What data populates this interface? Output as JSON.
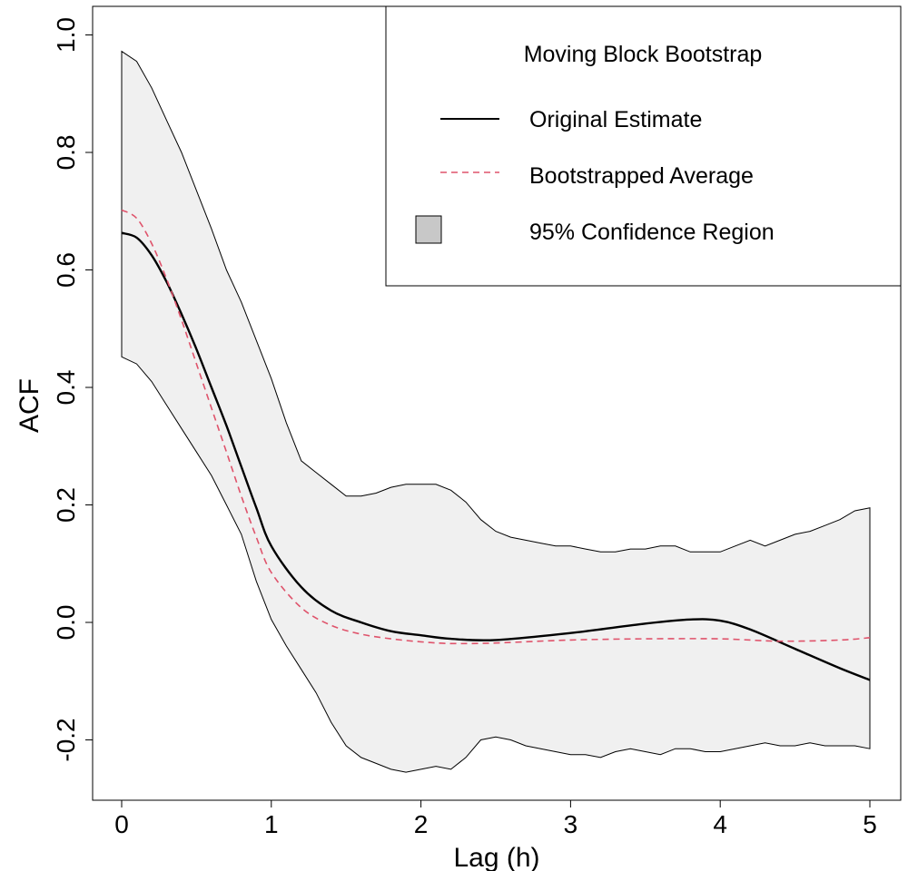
{
  "chart_data": {
    "type": "line",
    "title": "",
    "xlabel": "Lag (h)",
    "ylabel": "ACF",
    "xlim": [
      -0.18,
      5.05
    ],
    "ylim": [
      -0.3,
      1.05
    ],
    "xticks": [
      0,
      1,
      2,
      3,
      4,
      5
    ],
    "yticks": [
      -0.2,
      0.0,
      0.2,
      0.4,
      0.6,
      0.8,
      1.0
    ],
    "xtick_labels": [
      "0",
      "1",
      "2",
      "3",
      "4",
      "5"
    ],
    "ytick_labels": [
      "-0.2",
      "0.0",
      "0.2",
      "0.4",
      "0.6",
      "0.8",
      "1.0"
    ],
    "grid": false,
    "legend": {
      "position": "top-right",
      "title": "Moving Block Bootstrap",
      "entries": [
        {
          "label": "Original Estimate",
          "symbol": "solid-line",
          "color": "#000000"
        },
        {
          "label": "Bootstrapped Average",
          "symbol": "dashed-line",
          "color": "#DF536B"
        },
        {
          "label": "95% Confidence Region",
          "symbol": "filled-box",
          "color": "#C8C8C8"
        }
      ]
    },
    "band_color": "#F0F0F0",
    "series": [
      {
        "name": "Original Estimate",
        "style": "solid",
        "color": "#000000",
        "x": [
          0,
          0.1,
          0.2,
          0.3,
          0.4,
          0.5,
          0.6,
          0.7,
          0.8,
          0.9,
          1.0,
          1.2,
          1.4,
          1.6,
          1.8,
          2.0,
          2.2,
          2.5,
          3.0,
          3.5,
          3.8,
          4.0,
          4.2,
          4.5,
          4.8,
          5.0
        ],
        "y": [
          0.663,
          0.655,
          0.625,
          0.58,
          0.525,
          0.465,
          0.4,
          0.335,
          0.265,
          0.195,
          0.13,
          0.06,
          0.02,
          0.0,
          -0.015,
          -0.022,
          -0.028,
          -0.03,
          -0.018,
          -0.002,
          0.005,
          0.003,
          -0.012,
          -0.045,
          -0.078,
          -0.098
        ]
      },
      {
        "name": "Bootstrapped Average",
        "style": "dashed",
        "color": "#DF536B",
        "x": [
          0,
          0.1,
          0.2,
          0.3,
          0.4,
          0.5,
          0.6,
          0.7,
          0.8,
          0.9,
          1.0,
          1.2,
          1.4,
          1.6,
          1.8,
          2.0,
          2.2,
          2.5,
          3.0,
          3.5,
          4.0,
          4.4,
          4.8,
          5.0
        ],
        "y": [
          0.702,
          0.688,
          0.645,
          0.585,
          0.515,
          0.44,
          0.365,
          0.29,
          0.215,
          0.145,
          0.085,
          0.025,
          -0.005,
          -0.02,
          -0.028,
          -0.033,
          -0.036,
          -0.035,
          -0.03,
          -0.028,
          -0.028,
          -0.032,
          -0.03,
          -0.026
        ]
      }
    ],
    "confidence_region": {
      "x": [
        0,
        0.1,
        0.2,
        0.3,
        0.4,
        0.5,
        0.6,
        0.7,
        0.8,
        0.9,
        1.0,
        1.1,
        1.2,
        1.3,
        1.4,
        1.5,
        1.6,
        1.7,
        1.8,
        1.9,
        2.0,
        2.1,
        2.2,
        2.3,
        2.4,
        2.5,
        2.6,
        2.7,
        2.8,
        2.9,
        3.0,
        3.1,
        3.2,
        3.3,
        3.4,
        3.5,
        3.6,
        3.7,
        3.8,
        3.9,
        4.0,
        4.1,
        4.2,
        4.3,
        4.4,
        4.5,
        4.6,
        4.7,
        4.8,
        4.9,
        5.0
      ],
      "upper": [
        0.972,
        0.955,
        0.91,
        0.855,
        0.8,
        0.735,
        0.67,
        0.6,
        0.545,
        0.48,
        0.415,
        0.34,
        0.275,
        0.255,
        0.235,
        0.215,
        0.215,
        0.22,
        0.23,
        0.235,
        0.235,
        0.235,
        0.225,
        0.205,
        0.175,
        0.155,
        0.145,
        0.14,
        0.135,
        0.13,
        0.13,
        0.125,
        0.12,
        0.12,
        0.125,
        0.125,
        0.13,
        0.13,
        0.12,
        0.12,
        0.12,
        0.13,
        0.14,
        0.13,
        0.14,
        0.15,
        0.155,
        0.165,
        0.175,
        0.19,
        0.195
      ],
      "lower": [
        0.452,
        0.44,
        0.41,
        0.37,
        0.33,
        0.29,
        0.25,
        0.2,
        0.15,
        0.07,
        0.005,
        -0.04,
        -0.08,
        -0.12,
        -0.17,
        -0.21,
        -0.23,
        -0.24,
        -0.25,
        -0.255,
        -0.25,
        -0.245,
        -0.25,
        -0.23,
        -0.2,
        -0.195,
        -0.2,
        -0.21,
        -0.215,
        -0.22,
        -0.225,
        -0.225,
        -0.23,
        -0.22,
        -0.215,
        -0.22,
        -0.225,
        -0.215,
        -0.215,
        -0.22,
        -0.22,
        -0.215,
        -0.21,
        -0.205,
        -0.21,
        -0.21,
        -0.205,
        -0.21,
        -0.21,
        -0.21,
        -0.215
      ]
    }
  }
}
